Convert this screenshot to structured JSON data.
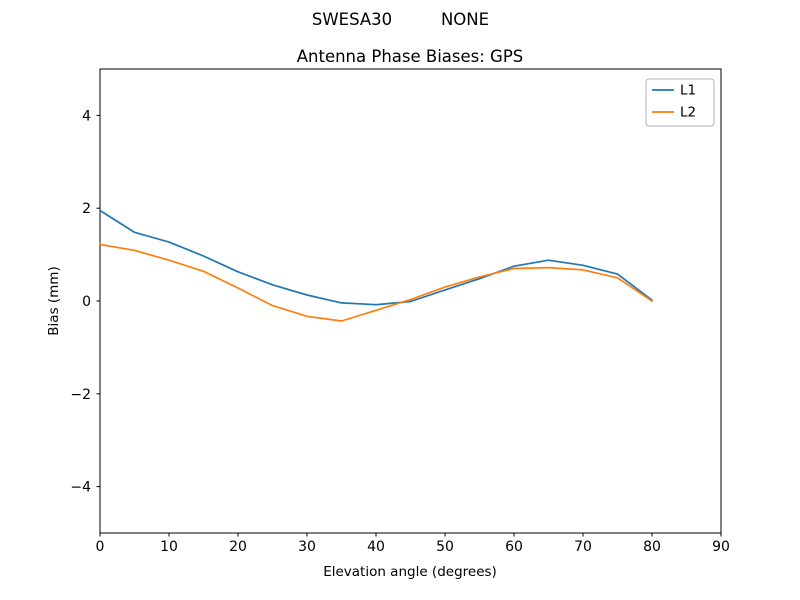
{
  "header": {
    "station": "SWESA30",
    "radome": "NONE"
  },
  "chart_data": {
    "type": "line",
    "title": "Antenna Phase Biases: GPS",
    "xlabel": "Elevation angle (degrees)",
    "ylabel": "Bias (mm)",
    "xlim": [
      0,
      90
    ],
    "ylim": [
      -5,
      5
    ],
    "xticks": [
      0,
      10,
      20,
      30,
      40,
      50,
      60,
      70,
      80,
      90
    ],
    "yticks": [
      -4,
      -2,
      0,
      2,
      4
    ],
    "grid": false,
    "legend_position": "upper right",
    "x": [
      0,
      5,
      10,
      15,
      20,
      25,
      30,
      35,
      40,
      45,
      50,
      55,
      60,
      65,
      70,
      75,
      80
    ],
    "series": [
      {
        "name": "L1",
        "color": "#1f77b4",
        "values": [
          1.95,
          1.48,
          1.27,
          0.97,
          0.63,
          0.35,
          0.13,
          -0.04,
          -0.08,
          -0.01,
          0.24,
          0.48,
          0.75,
          0.88,
          0.77,
          0.58,
          0.02
        ]
      },
      {
        "name": "L2",
        "color": "#ff7f0e",
        "values": [
          1.22,
          1.09,
          0.88,
          0.64,
          0.28,
          -0.1,
          -0.33,
          -0.43,
          -0.2,
          0.03,
          0.3,
          0.52,
          0.7,
          0.72,
          0.67,
          0.5,
          0.0
        ]
      }
    ],
    "axis_color": "#000000",
    "legend_border_color": "#b3b3b3"
  }
}
